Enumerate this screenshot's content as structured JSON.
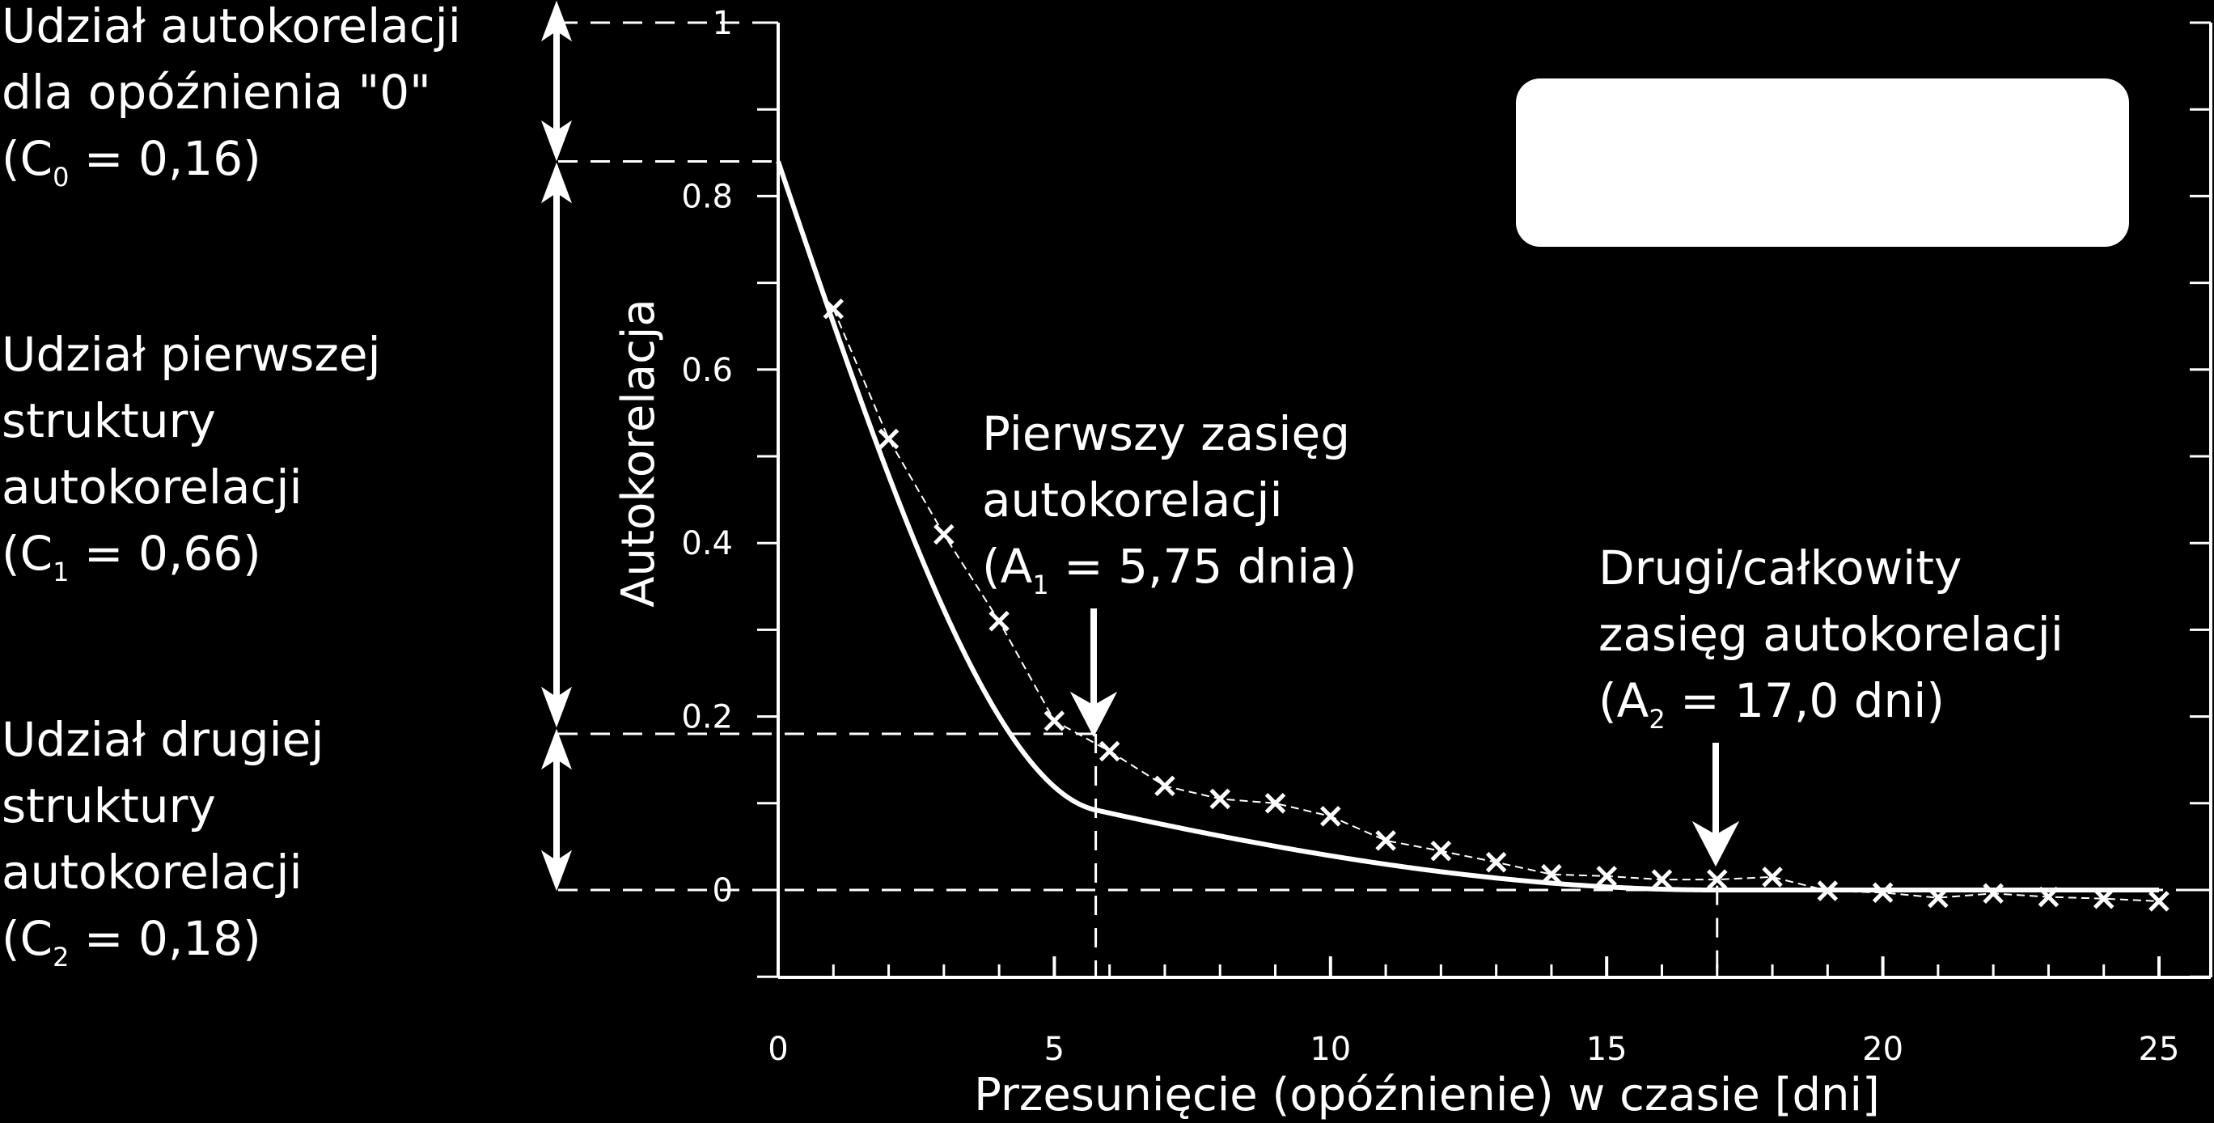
{
  "chart_data": {
    "type": "line",
    "title": "",
    "xlabel": "Przesunięcie (opóźnienie) w czasie [dni]",
    "ylabel": "Autokorelacja",
    "xlim": [
      0,
      25
    ],
    "ylim": [
      -0.1,
      1.0
    ],
    "x_ticks": [
      0,
      5,
      10,
      15,
      20,
      25
    ],
    "x_tick_labels": [
      "0",
      "5",
      "10",
      "15",
      "20",
      "25"
    ],
    "y_ticks": [
      0,
      0.2,
      0.4,
      0.6,
      0.8,
      1
    ],
    "y_tick_labels": [
      "0",
      "0.2",
      "0.4",
      "0.6",
      "0.8",
      "1"
    ],
    "grid": false,
    "legend": "top-right (blank box)",
    "series": [
      {
        "style": "dashed line with x markers",
        "x": [
          1,
          2,
          3,
          4,
          5,
          6,
          7,
          8,
          9,
          10,
          11,
          12,
          13,
          14,
          15,
          16,
          17,
          18,
          19,
          20,
          21,
          22,
          23,
          24,
          25
        ],
        "y": [
          0.67,
          0.52,
          0.41,
          0.31,
          0.195,
          0.16,
          0.12,
          0.105,
          0.1,
          0.085,
          0.057,
          0.045,
          0.032,
          0.018,
          0.016,
          0.012,
          0.012,
          0.015,
          -0.001,
          -0.003,
          -0.009,
          -0.004,
          -0.008,
          -0.01,
          -0.013
        ]
      },
      {
        "style": "solid fitted curve (nested spherical model)",
        "model": {
          "C0": 0.16,
          "C1": 0.66,
          "A1": 5.75,
          "C2": 0.18,
          "A2": 17.0
        }
      }
    ],
    "reference_lines": {
      "horizontal": [
        1.0,
        0.84,
        0.18,
        0.0
      ],
      "vertical": [
        5.75,
        17.0
      ]
    },
    "annotations": {
      "nugget": [
        "Udział autokorelacji",
        "dla opóźnienia \"0\"",
        " (C",
        "0",
        " = 0,16)"
      ],
      "first_structure": [
        "Udział pierwszej",
        "struktury",
        "autokorelacji",
        "(C",
        "1",
        " = 0,66)"
      ],
      "second_structure": [
        "Udział drugiej",
        "struktury",
        "autokorelacji",
        "(C",
        "2",
        " = 0,18)"
      ],
      "range1": [
        "Pierwszy zasięg",
        "autokorelacji",
        "(A",
        "1",
        " = 5,75 dnia)"
      ],
      "range2": [
        "Drugi/całkowity",
        "zasięg autokorelacji",
        "(A",
        "2",
        " = 17,0 dni)"
      ]
    },
    "colors": {
      "background": "#000000",
      "foreground": "#ffffff"
    }
  }
}
